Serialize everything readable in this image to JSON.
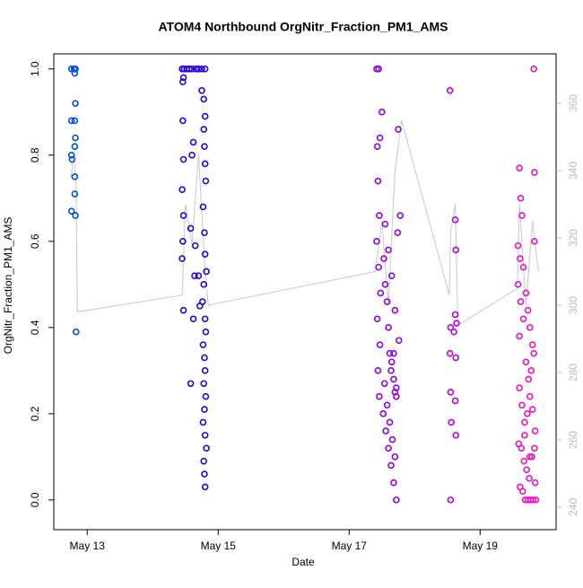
{
  "chart_data": {
    "type": "scatter",
    "title": "ATOM4 Northbound OrgNitr_Fraction_PM1_AMS",
    "x_label": "Date",
    "y_label": "OrgNitr_Fraction_PM1_AMS",
    "xlim": [
      12.49,
      20.16
    ],
    "xticks": [
      {
        "value": 13,
        "label": "May 13"
      },
      {
        "value": 15,
        "label": "May 15"
      },
      {
        "value": 17,
        "label": "May 17"
      },
      {
        "value": 19,
        "label": "May 19"
      }
    ],
    "ylim": [
      -0.069,
      1.035
    ],
    "yticks": [
      {
        "value": 0,
        "label": "0.0"
      },
      0.2,
      0.4,
      0.6,
      0.8,
      {
        "value": 1,
        "label": "1.0"
      }
    ],
    "y2lim": [
      233.3,
      374.7
    ],
    "y2ticks": [
      240,
      260,
      280,
      300,
      320,
      340,
      360
    ],
    "series": [
      {
        "color": "#0050e0",
        "x": [
          12.76,
          12.8,
          12.82,
          12.81,
          12.82,
          12.76,
          12.81,
          12.82,
          12.81,
          12.76,
          12.77,
          12.81,
          12.81,
          12.76,
          12.82,
          12.83
        ],
        "values": [
          1.0,
          1.0,
          1.0,
          0.99,
          0.92,
          0.88,
          0.88,
          0.84,
          0.82,
          0.8,
          0.79,
          0.75,
          0.71,
          0.67,
          0.66,
          0.39
        ]
      },
      {
        "color": "#2a00e4",
        "x": [
          14.45,
          14.48,
          14.52,
          14.56,
          14.6,
          14.66,
          14.7,
          14.75,
          14.8,
          14.47,
          14.46,
          14.46,
          14.47,
          14.45,
          14.47,
          14.46,
          14.45,
          14.47,
          14.6,
          14.62,
          14.58,
          14.64,
          14.7,
          14.72,
          14.75,
          14.78,
          14.8,
          14.78,
          14.79,
          14.8,
          14.81,
          14.77,
          14.79,
          14.8,
          14.82,
          14.78,
          14.76,
          14.8,
          14.81,
          14.77,
          14.79,
          14.8,
          14.78,
          14.81,
          14.79,
          14.77,
          14.8,
          14.82,
          14.78,
          14.79,
          14.8,
          14.58,
          14.62,
          14.65
        ],
        "values": [
          1.0,
          1.0,
          1.0,
          1.0,
          1.0,
          1.0,
          1.0,
          1.0,
          1.0,
          0.98,
          0.97,
          0.88,
          0.79,
          0.72,
          0.66,
          0.6,
          0.56,
          0.44,
          0.8,
          0.83,
          0.63,
          0.52,
          0.52,
          0.45,
          0.95,
          0.93,
          0.89,
          0.86,
          0.82,
          0.78,
          0.74,
          0.68,
          0.62,
          0.57,
          0.53,
          0.5,
          0.46,
          0.42,
          0.39,
          0.36,
          0.33,
          0.3,
          0.27,
          0.24,
          0.21,
          0.18,
          0.15,
          0.12,
          0.09,
          0.06,
          0.03,
          0.27,
          0.42,
          0.59
        ]
      },
      {
        "color": "#9000ec",
        "x": [
          17.42,
          17.45,
          17.47,
          17.43,
          17.44,
          17.46,
          17.42,
          17.45,
          17.48,
          17.43,
          17.47,
          17.44,
          17.46,
          17.5,
          17.53,
          17.55,
          17.58,
          17.6,
          17.62,
          17.65,
          17.68,
          17.7,
          17.72,
          17.75,
          17.78,
          17.52,
          17.56,
          17.6,
          17.64,
          17.68,
          17.72,
          17.55,
          17.6,
          17.65,
          17.7,
          17.76,
          17.58,
          17.62,
          17.66,
          17.7,
          17.54,
          17.64,
          17.68,
          17.72,
          17.74
        ],
        "values": [
          1.0,
          1.0,
          0.84,
          0.82,
          0.74,
          0.66,
          0.6,
          0.54,
          0.48,
          0.42,
          0.36,
          0.3,
          0.24,
          0.9,
          0.56,
          0.5,
          0.46,
          0.4,
          0.34,
          0.32,
          0.28,
          0.25,
          0.24,
          0.86,
          0.66,
          0.2,
          0.16,
          0.12,
          0.08,
          0.04,
          0.0,
          0.64,
          0.58,
          0.52,
          0.44,
          0.37,
          0.22,
          0.18,
          0.14,
          0.1,
          0.27,
          0.3,
          0.34,
          0.26,
          0.62
        ]
      },
      {
        "color": "#bc00e8",
        "x": [
          18.54,
          18.55,
          18.62,
          18.63,
          18.62,
          18.64,
          18.6,
          18.63,
          18.54,
          18.55,
          18.56,
          18.62,
          18.63,
          18.55
        ],
        "values": [
          0.95,
          0.4,
          0.65,
          0.58,
          0.43,
          0.41,
          0.39,
          0.33,
          0.34,
          0.25,
          0.18,
          0.23,
          0.15,
          0.0
        ]
      },
      {
        "color": "#ee10c8",
        "x": [
          19.6,
          19.82,
          19.83,
          19.62,
          19.83,
          19.58,
          19.61,
          19.64,
          19.66,
          19.7,
          19.73,
          19.76,
          19.8,
          19.58,
          19.62,
          19.66,
          19.7,
          19.74,
          19.78,
          19.82,
          19.6,
          19.64,
          19.68,
          19.72,
          19.76,
          19.8,
          19.84,
          19.59,
          19.63,
          19.67,
          19.71,
          19.75,
          19.79,
          19.83,
          19.61,
          19.65,
          19.69,
          19.73,
          19.77,
          19.81,
          19.85,
          19.6,
          19.68,
          19.76,
          19.84
        ],
        "values": [
          0.77,
          1.0,
          0.76,
          0.7,
          0.6,
          0.59,
          0.56,
          0.66,
          0.54,
          0.48,
          0.44,
          0.4,
          0.36,
          0.5,
          0.46,
          0.42,
          0.32,
          0.28,
          0.3,
          0.34,
          0.26,
          0.22,
          0.18,
          0.2,
          0.24,
          0.21,
          0.16,
          0.13,
          0.12,
          0.09,
          0.07,
          0.05,
          0.1,
          0.12,
          0.03,
          0.02,
          0.0,
          0.0,
          0.0,
          0.0,
          0.0,
          0.38,
          0.15,
          0.1,
          0.04
        ]
      },
      {
        "color": "#c8c8c8",
        "axis": "y2",
        "x": [
          12.75,
          12.78,
          12.8,
          12.83,
          12.85,
          14.45,
          14.5,
          14.6,
          14.7,
          14.8,
          14.85,
          17.4,
          17.5,
          17.6,
          17.7,
          17.8,
          18.53,
          18.55,
          18.62,
          18.66,
          19.57,
          19.6,
          19.7,
          19.8,
          19.89
        ],
        "values": [
          338,
          342,
          345,
          335,
          298,
          303,
          330,
          318,
          345,
          310,
          300,
          310,
          325,
          300,
          340,
          355,
          303,
          322,
          330,
          294,
          305,
          330,
          300,
          325,
          310
        ]
      }
    ]
  }
}
